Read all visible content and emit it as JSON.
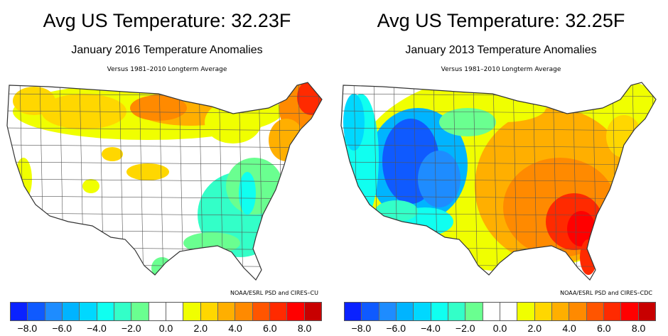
{
  "colorbar": {
    "colors": [
      "#0a22ff",
      "#0f5aff",
      "#1e8cff",
      "#00b4ff",
      "#00d8ff",
      "#10fff0",
      "#33ffc8",
      "#6aff90",
      "#ffffff",
      "#ffffff",
      "#f0ff00",
      "#ffd700",
      "#ffaf00",
      "#ff8a00",
      "#ff5500",
      "#ff2a00",
      "#ff0000",
      "#c80000"
    ],
    "ticks": [
      "−8.0",
      "−6.0",
      "−4.0",
      "−2.0",
      "0.0",
      "2.0",
      "4.0",
      "6.0",
      "8.0"
    ]
  },
  "panels": [
    {
      "title": "Avg US Temperature: 32.23F",
      "subtitle": "January 2016 Temperature Anomalies",
      "versus": "Versus 1981–2010 Longterm Average",
      "credit": "NOAA/ESRL PSD and CIRES–CU"
    },
    {
      "title": "Avg US Temperature: 32.25F",
      "subtitle": "January 2013 Temperature Anomalies",
      "versus": "Versus 1981–2010 Longterm Average",
      "credit": "NOAA/ESRL PSD and CIRES–CDC"
    }
  ]
}
